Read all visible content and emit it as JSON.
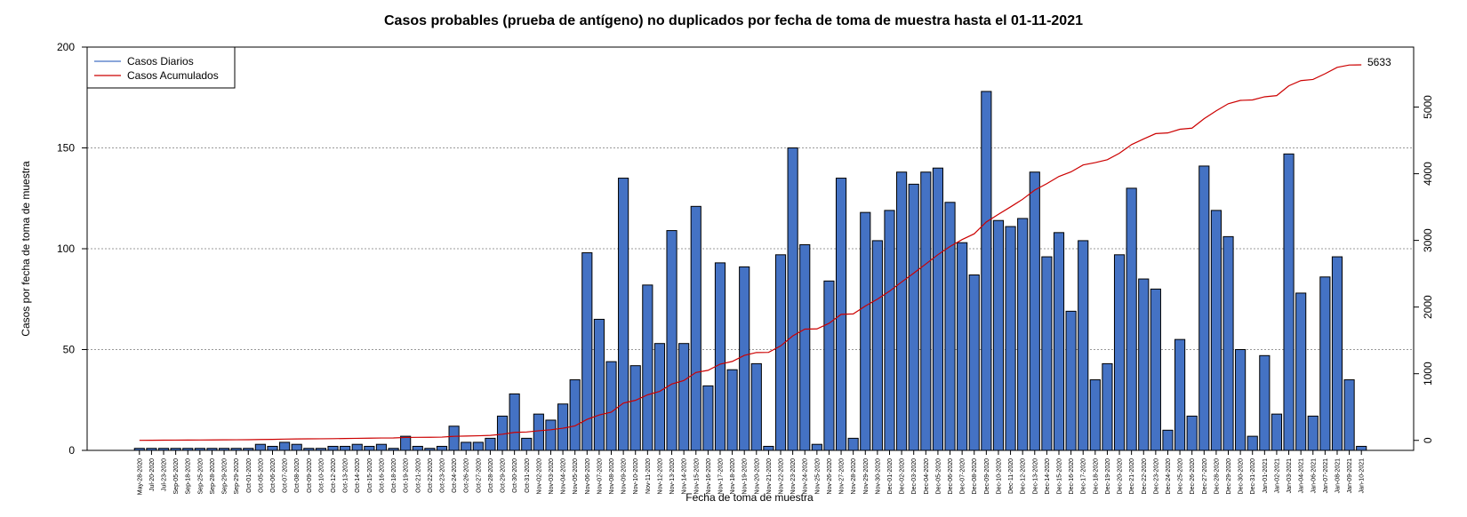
{
  "chart_data": {
    "type": "bar",
    "title": "Casos probables (prueba de antígeno) no duplicados por fecha de toma de muestra hasta el 01-11-2021",
    "xlabel": "Fecha de toma de muestra",
    "ylabel": "Casos por fecha de toma de muestra",
    "ylim": [
      0,
      200
    ],
    "yticks": [
      0,
      50,
      100,
      150,
      200
    ],
    "y2lim": [
      -150,
      5900
    ],
    "y2ticks": [
      0,
      1000,
      2000,
      3000,
      4000,
      5000
    ],
    "grid": "horizontal dotted",
    "legend_position": "top-left",
    "categories": [
      "May-28-2020",
      "Jul-20-2020",
      "Jul-23-2020",
      "Sep-05-2020",
      "Sep-18-2020",
      "Sep-25-2020",
      "Sep-28-2020",
      "Sep-29-2020",
      "Sep-29-2020",
      "Oct-01-2020",
      "Oct-05-2020",
      "Oct-06-2020",
      "Oct-07-2020",
      "Oct-08-2020",
      "Oct-09-2020",
      "Oct-10-2020",
      "Oct-12-2020",
      "Oct-13-2020",
      "Oct-14-2020",
      "Oct-15-2020",
      "Oct-16-2020",
      "Oct-18-2020",
      "Oct-19-2020",
      "Oct-21-2020",
      "Oct-22-2020",
      "Oct-23-2020",
      "Oct-24-2020",
      "Oct-26-2020",
      "Oct-27-2020",
      "Oct-28-2020",
      "Oct-29-2020",
      "Oct-30-2020",
      "Oct-31-2020",
      "Nov-02-2020",
      "Nov-03-2020",
      "Nov-04-2020",
      "Nov-05-2020",
      "Nov-06-2020",
      "Nov-07-2020",
      "Nov-08-2020",
      "Nov-09-2020",
      "Nov-10-2020",
      "Nov-11-2020",
      "Nov-12-2020",
      "Nov-13-2020",
      "Nov-14-2020",
      "Nov-15-2020",
      "Nov-16-2020",
      "Nov-17-2020",
      "Nov-18-2020",
      "Nov-19-2020",
      "Nov-20-2020",
      "Nov-21-2020",
      "Nov-22-2020",
      "Nov-23-2020",
      "Nov-24-2020",
      "Nov-25-2020",
      "Nov-26-2020",
      "Nov-27-2020",
      "Nov-28-2020",
      "Nov-29-2020",
      "Nov-30-2020",
      "Dec-01-2020",
      "Dec-02-2020",
      "Dec-03-2020",
      "Dec-04-2020",
      "Dec-05-2020",
      "Dec-06-2020",
      "Dec-07-2020",
      "Dec-08-2020",
      "Dec-09-2020",
      "Dec-10-2020",
      "Dec-11-2020",
      "Dec-12-2020",
      "Dec-13-2020",
      "Dec-14-2020",
      "Dec-15-2020",
      "Dec-16-2020",
      "Dec-17-2020",
      "Dec-18-2020",
      "Dec-19-2020",
      "Dec-20-2020",
      "Dec-21-2020",
      "Dec-22-2020",
      "Dec-23-2020",
      "Dec-24-2020",
      "Dec-25-2020",
      "Dec-26-2020",
      "Dec-27-2020",
      "Dec-28-2020",
      "Dec-29-2020",
      "Dec-30-2020",
      "Dec-31-2020",
      "Jan-01-2021",
      "Jan-02-2021",
      "Jan-03-2021",
      "Jan-04-2021",
      "Jan-06-2021",
      "Jan-07-2021",
      "Jan-08-2021",
      "Jan-09-2021",
      "Jan-10-2021"
    ],
    "series": [
      {
        "name": "Casos Diarios",
        "axis": "left",
        "values": [
          1,
          1,
          1,
          1,
          1,
          1,
          1,
          1,
          1,
          1,
          3,
          2,
          4,
          3,
          1,
          1,
          2,
          2,
          3,
          2,
          3,
          1,
          7,
          2,
          1,
          2,
          12,
          4,
          4,
          6,
          17,
          28,
          6,
          18,
          15,
          23,
          35,
          98,
          65,
          44,
          135,
          42,
          82,
          53,
          109,
          53,
          121,
          32,
          93,
          40,
          91,
          43,
          2,
          97,
          150,
          102,
          3,
          84,
          135,
          6,
          118,
          104,
          119,
          138,
          132,
          138,
          140,
          123,
          103,
          87,
          178,
          114,
          111,
          115,
          138,
          96,
          108,
          69,
          104,
          35,
          43,
          97,
          130,
          85,
          80,
          10,
          55,
          17,
          141,
          119,
          106,
          50,
          7,
          47,
          18,
          147,
          78,
          17,
          86,
          96,
          35,
          2
        ]
      },
      {
        "name": "Casos Acumulados",
        "axis": "right",
        "values": [
          1,
          2,
          3,
          4,
          5,
          6,
          7,
          8,
          9,
          10,
          13,
          15,
          19,
          22,
          23,
          24,
          26,
          28,
          31,
          33,
          36,
          37,
          44,
          46,
          47,
          49,
          61,
          65,
          69,
          75,
          92,
          120,
          126,
          144,
          159,
          182,
          217,
          315,
          380,
          424,
          559,
          601,
          683,
          736,
          845,
          898,
          1019,
          1051,
          1144,
          1184,
          1275,
          1318,
          1320,
          1417,
          1567,
          1669,
          1672,
          1756,
          1891,
          1897,
          2015,
          2119,
          2238,
          2376,
          2508,
          2646,
          2786,
          2909,
          3012,
          3099,
          3277,
          3391,
          3502,
          3617,
          3755,
          3851,
          3959,
          4028,
          4132,
          4167,
          4210,
          4307,
          4437,
          4522,
          4602,
          4612,
          4667,
          4684,
          4825,
          4944,
          5050,
          5100,
          5107,
          5154,
          5172,
          5319,
          5397,
          5414,
          5500,
          5596,
          5631,
          5633
        ]
      }
    ],
    "final_total_label": "5633",
    "colors": {
      "bars": "#4472C4",
      "bar_edge": "#000000",
      "cumulative_line": "#CC0000",
      "daily_legend_line": "#4472C4",
      "grid": "#999999"
    }
  }
}
